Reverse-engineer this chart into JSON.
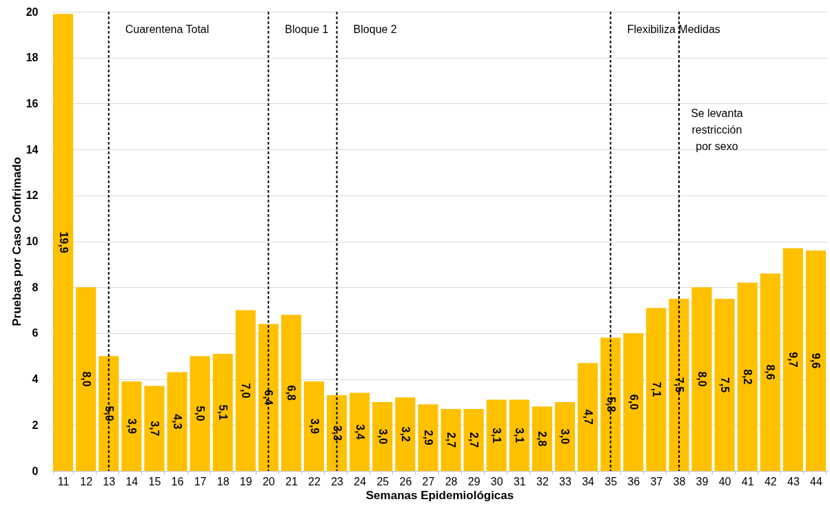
{
  "chart_data": {
    "type": "bar",
    "xlabel": "Semanas Epidemiológicas",
    "ylabel": "Pruebas por Caso Confrimado",
    "categories": [
      "11",
      "12",
      "13",
      "14",
      "15",
      "16",
      "17",
      "18",
      "19",
      "20",
      "21",
      "22",
      "23",
      "24",
      "25",
      "26",
      "27",
      "28",
      "29",
      "30",
      "31",
      "32",
      "33",
      "34",
      "35",
      "36",
      "37",
      "38",
      "39",
      "40",
      "41",
      "42",
      "43",
      "44"
    ],
    "values": [
      19.9,
      8.0,
      5.0,
      3.9,
      3.7,
      4.3,
      5.0,
      5.1,
      7.0,
      6.4,
      6.8,
      3.9,
      3.3,
      3.4,
      3.0,
      3.2,
      2.9,
      2.7,
      2.7,
      3.1,
      3.1,
      2.8,
      3.0,
      4.7,
      5.8,
      6.0,
      7.1,
      7.5,
      8.0,
      7.5,
      8.2,
      8.6,
      9.7,
      9.6
    ],
    "value_labels": [
      "19,9",
      "8,0",
      "5,0",
      "3,9",
      "3,7",
      "4,3",
      "5,0",
      "5,1",
      "7,0",
      "6,4",
      "6,8",
      "3,9",
      "3,3",
      "3,4",
      "3,0",
      "3,2",
      "2,9",
      "2,7",
      "2,7",
      "3,1",
      "3,1",
      "2,8",
      "3,0",
      "4,7",
      "5,8",
      "6,0",
      "7,1",
      "7,5",
      "8,0",
      "7,5",
      "8,2",
      "8,6",
      "9,7",
      "9,6"
    ],
    "color": "#ffc000",
    "ylim": [
      0,
      20
    ],
    "yticks": [
      0,
      2,
      4,
      6,
      8,
      10,
      12,
      14,
      16,
      18,
      20
    ],
    "grid": "y",
    "ref_lines": [
      {
        "axis": "x",
        "value": "13",
        "label": "Cuarentena Total",
        "line_style": "dashed",
        "color": "#000000"
      },
      {
        "axis": "x",
        "value": "20",
        "label": "Bloque 1",
        "line_style": "dashed",
        "color": "#000000"
      },
      {
        "axis": "x",
        "value": "23",
        "label": "Bloque 2",
        "line_style": "dashed",
        "color": "#000000"
      },
      {
        "axis": "x",
        "value": "35",
        "label": "Flexibiliza Medidas",
        "line_style": "dashed",
        "color": "#000000"
      },
      {
        "axis": "x",
        "value": "38",
        "label": "Se levanta restricción por sexo",
        "line_style": "dashed",
        "color": "#000000"
      }
    ]
  }
}
